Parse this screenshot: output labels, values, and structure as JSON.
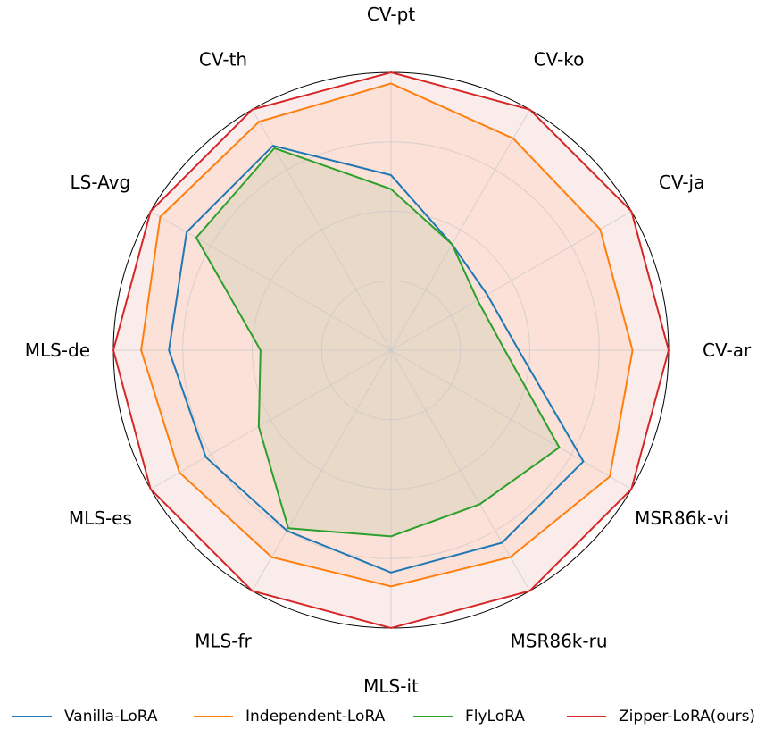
{
  "chart_data": {
    "type": "radar",
    "title": "",
    "axes": [
      "CV-pt",
      "CV-ko",
      "CV-ja",
      "CV-ar",
      "MSR86k-vi",
      "MSR86k-ru",
      "MLS-it",
      "MLS-fr",
      "MLS-es",
      "MLS-de",
      "LS-Avg",
      "CV-th"
    ],
    "rlim": [
      0,
      1
    ],
    "grid": true,
    "grid_rings": [
      0.25,
      0.5,
      0.75
    ],
    "legend_position": "bottom",
    "series": [
      {
        "name": "Vanilla-LoRA",
        "color": "#1f77b4",
        "fill": false,
        "values": [
          0.63,
          0.44,
          0.4,
          0.46,
          0.8,
          0.8,
          0.8,
          0.75,
          0.77,
          0.8,
          0.85,
          0.85
        ]
      },
      {
        "name": "Independent-LoRA",
        "color": "#ff7f0e",
        "fill": true,
        "values": [
          0.96,
          0.88,
          0.87,
          0.87,
          0.91,
          0.86,
          0.85,
          0.86,
          0.88,
          0.9,
          0.96,
          0.95
        ]
      },
      {
        "name": "FlyLoRA",
        "color": "#2ca02c",
        "fill": true,
        "values": [
          0.58,
          0.44,
          0.36,
          0.41,
          0.7,
          0.64,
          0.67,
          0.74,
          0.55,
          0.47,
          0.81,
          0.84
        ]
      },
      {
        "name": "Zipper-LoRA(ours)",
        "color": "#d62728",
        "fill": true,
        "values": [
          1.0,
          1.0,
          1.0,
          1.0,
          1.0,
          1.0,
          1.0,
          1.0,
          1.0,
          1.0,
          1.0,
          1.0
        ]
      }
    ]
  }
}
